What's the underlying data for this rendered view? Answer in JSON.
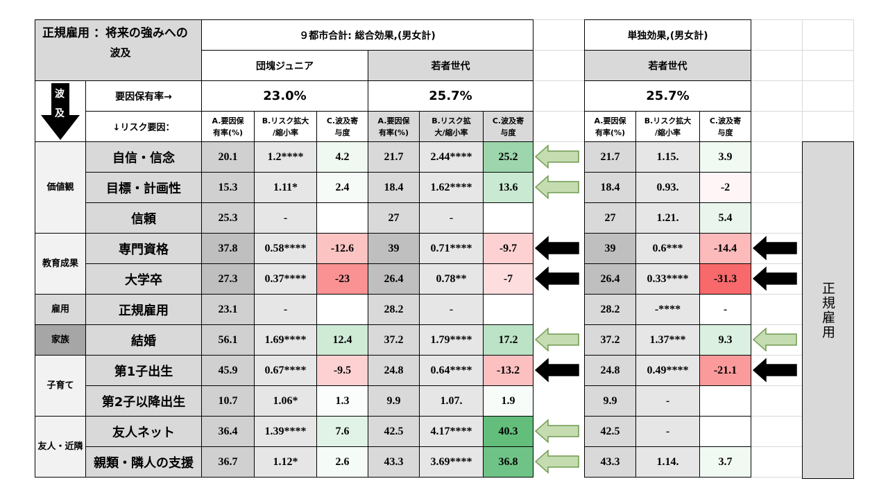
{
  "title_line1": "正規雇用 ：将来の強みへの",
  "title_line2": "波及",
  "arrow_label_1": "波",
  "arrow_label_2": "及",
  "group_combined": "９都市合計: 総合効果,(男女計)",
  "group_single": "単独効果,(男女計)",
  "gen_dankai": "団塊ジュニア",
  "gen_young": "若者世代",
  "gen_young_single": "若者世代",
  "holding_rate_label": "要因保有率→",
  "risk_factor_label": "↓リスク要因：",
  "rate_dankai": "23.0%",
  "rate_young": "25.7%",
  "rate_single": "25.7%",
  "col_a1": "A.要因保",
  "col_a2": "有率(%)",
  "col_b1": "B.リスク拡大",
  "col_b2": "/縮小率",
  "col_b1_mid": "B.リスク拡",
  "col_b2_mid": "大/縮小率",
  "col_c1": "C.波及寄",
  "col_c2": "与度",
  "side_label": "正規雇用",
  "categories": [
    {
      "name": "価値観"
    },
    {
      "name": "教育成果"
    },
    {
      "name": "雇用"
    },
    {
      "name": "家族"
    },
    {
      "name": "子育て"
    },
    {
      "name": "友人・近隣"
    }
  ],
  "rows": [
    {
      "factor": "自信・信念",
      "cells": [
        "20.1",
        "1.2****",
        "4.2",
        "21.7",
        "2.44****",
        "25.2",
        "21.7",
        "1.15.",
        "3.9"
      ],
      "arrow": "green",
      "arrow_right": ""
    },
    {
      "factor": "目標・計画性",
      "cells": [
        "15.3",
        "1.11*",
        "2.4",
        "18.4",
        "1.62****",
        "13.6",
        "18.4",
        "0.93.",
        "-2"
      ],
      "arrow": "green",
      "arrow_right": ""
    },
    {
      "factor": "信頼",
      "cells": [
        "25.3",
        "-",
        "",
        "27",
        "-",
        "",
        "27",
        "1.21.",
        "5.4"
      ],
      "arrow": "",
      "arrow_right": ""
    },
    {
      "factor": "専門資格",
      "cells": [
        "37.8",
        "0.58****",
        "-12.6",
        "39",
        "0.71****",
        "-9.7",
        "39",
        "0.6***",
        "-14.4"
      ],
      "arrow": "black",
      "arrow_right": "black"
    },
    {
      "factor": "大学卒",
      "cells": [
        "27.3",
        "0.37****",
        "-23",
        "26.4",
        "0.78**",
        "-7",
        "26.4",
        "0.33****",
        "-31.3"
      ],
      "arrow": "black",
      "arrow_right": "black"
    },
    {
      "factor": "正規雇用",
      "cells": [
        "23.1",
        "-",
        "",
        "28.2",
        "-",
        "",
        "28.2",
        "-****",
        "-"
      ],
      "arrow": "",
      "arrow_right": ""
    },
    {
      "factor": "結婚",
      "cells": [
        "56.1",
        "1.69****",
        "12.4",
        "37.2",
        "1.79****",
        "17.2",
        "37.2",
        "1.37***",
        "9.3"
      ],
      "arrow": "green",
      "arrow_right": "green"
    },
    {
      "factor": "第1子出生",
      "cells": [
        "45.9",
        "0.67****",
        "-9.5",
        "24.8",
        "0.64****",
        "-13.2",
        "24.8",
        "0.49****",
        "-21.1"
      ],
      "arrow": "black",
      "arrow_right": "black"
    },
    {
      "factor": "第2子以降出生",
      "cells": [
        "10.7",
        "1.06*",
        "1.3",
        "9.9",
        "1.07.",
        "1.9",
        "9.9",
        "-",
        ""
      ],
      "arrow": "",
      "arrow_right": ""
    },
    {
      "factor": "友人ネット",
      "cells": [
        "36.4",
        "1.39****",
        "7.6",
        "42.5",
        "4.17****",
        "40.3",
        "42.5",
        "-",
        ""
      ],
      "arrow": "green",
      "arrow_right": ""
    },
    {
      "factor": "親類・隣人の支援",
      "cells": [
        "36.7",
        "1.12*",
        "2.6",
        "43.3",
        "3.69****",
        "36.8",
        "43.3",
        "1.14.",
        "3.7"
      ],
      "arrow": "green",
      "arrow_right": ""
    }
  ],
  "colors": {
    "gray_header": "#d9d9d9",
    "gray_dark": "#bfbfbf",
    "gray_mid": "#d0d0d0",
    "green_arrow_fill": "#c4dcb0",
    "green_arrow_stroke": "#6f9a4f"
  }
}
